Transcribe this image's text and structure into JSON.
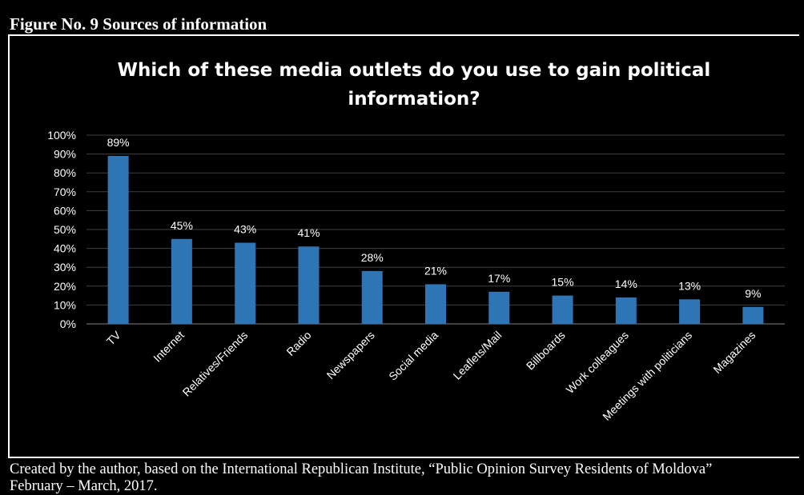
{
  "figure_label": "Figure No. 9 Sources of information",
  "source_line1": "Created by the author, based on the International Republican Institute, “Public Opinion Survey Residents of Moldova”",
  "source_line2": "February – March, 2017.",
  "colors": {
    "background": "#000000",
    "bar": "#2E75B6",
    "text": "#FFFFFF",
    "gridline": "#404040"
  },
  "chart_data": {
    "type": "bar",
    "title": "Which of these media outlets do you use to gain political information?",
    "title_lines": [
      "Which of these media outlets do you use to gain political",
      "information?"
    ],
    "categories": [
      "TV",
      "Internet",
      "Relatives/Friends",
      "Radio",
      "Newspapers",
      "Social media",
      "Leaflets/Mail",
      "Billboards",
      "Work colleagues",
      "Meetings with politicians",
      "Magazines"
    ],
    "values": [
      89,
      45,
      43,
      41,
      28,
      21,
      17,
      15,
      14,
      13,
      9
    ],
    "data_labels": [
      "89%",
      "45%",
      "43%",
      "41%",
      "28%",
      "21%",
      "17%",
      "15%",
      "14%",
      "13%",
      "9%"
    ],
    "yticks": [
      "0%",
      "10%",
      "20%",
      "30%",
      "40%",
      "50%",
      "60%",
      "70%",
      "80%",
      "90%",
      "100%"
    ],
    "ylim": [
      0,
      100
    ],
    "xlabel": "",
    "ylabel": "",
    "grid": true,
    "legend": "none"
  }
}
